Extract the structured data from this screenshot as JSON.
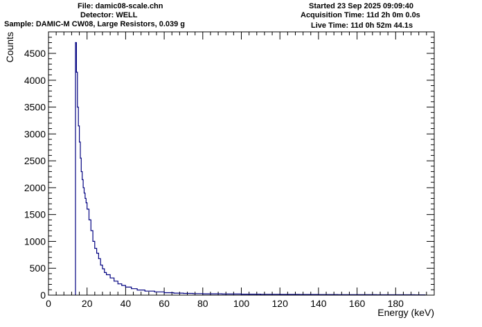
{
  "header": {
    "file": "File: damic08-scale.chn",
    "detector": "Detector: WELL",
    "sample": "Sample: DAMIC-M CW08, Large Resistors, 0.039 g",
    "started": "Started 23 Sep 2025 09:09:40",
    "acquisition": "Acquisition Time: 11d 2h 0m 0.0s",
    "live": "Live Time: 11d 0h 52m 44.1s"
  },
  "chart_data": {
    "type": "line",
    "title": "",
    "xlabel": "Energy (keV)",
    "ylabel": "Counts",
    "xlim": [
      0,
      200
    ],
    "ylim": [
      0,
      4900
    ],
    "xticks": [
      0,
      20,
      40,
      60,
      80,
      100,
      120,
      140,
      160,
      180
    ],
    "yticks": [
      0,
      500,
      1000,
      1500,
      2000,
      2500,
      3000,
      3500,
      4000,
      4500
    ],
    "grid": false,
    "legend": "none",
    "colors": {
      "line": "#000080",
      "axis": "#000000"
    },
    "series": [
      {
        "x": [
          14.0,
          14.5,
          15.0,
          15.5,
          16.0,
          16.5,
          17.0,
          17.5,
          18.0,
          18.5,
          19.0,
          19.5,
          20.0,
          21.0,
          22.0,
          23.0,
          24.0,
          25.0,
          26.0,
          27.0,
          28.0,
          29.0,
          30.0,
          32.0,
          34.0,
          36.0,
          38.0,
          40.0,
          43.0,
          46.0,
          50.0,
          55.0,
          60.0,
          65.0,
          70.0,
          75.0,
          80.0,
          90.0,
          100.0,
          110.0,
          120.0,
          130.0,
          140.0,
          150.0,
          160.0,
          170.0,
          180.0,
          190.0,
          195.0
        ],
        "y": [
          4700,
          4150,
          3500,
          3150,
          2850,
          2550,
          2300,
          2150,
          2000,
          1900,
          1800,
          1720,
          1600,
          1400,
          1200,
          1000,
          870,
          780,
          680,
          560,
          490,
          420,
          380,
          320,
          260,
          210,
          180,
          150,
          120,
          95,
          75,
          60,
          45,
          38,
          32,
          28,
          25,
          20,
          18,
          15,
          13,
          12,
          10,
          9,
          8,
          7,
          6,
          5,
          5
        ]
      }
    ]
  }
}
